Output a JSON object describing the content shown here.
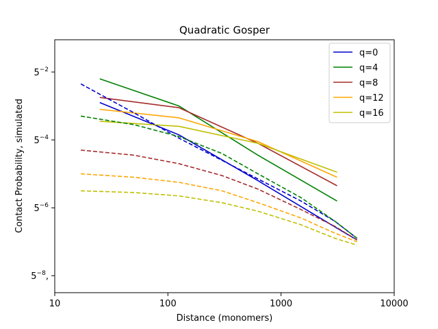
{
  "chart_data": {
    "type": "line",
    "title": "Quadratic Gosper",
    "xlabel": "Distance (monomers)",
    "ylabel": "Contact Probability, simulated",
    "x_scale": "log10",
    "y_scale": "log5",
    "xlim": [
      10,
      10000
    ],
    "ylim_exp": [
      -8.5,
      -1.05
    ],
    "x_ticks": [
      {
        "value": 10,
        "label": "10"
      },
      {
        "value": 100,
        "label": "100"
      },
      {
        "value": 1000,
        "label": "1000"
      },
      {
        "value": 10000,
        "label": "10000"
      }
    ],
    "y_ticks": [
      {
        "exp": -2,
        "base": "5",
        "sup": "−2",
        "suffix": ""
      },
      {
        "exp": -4,
        "base": "5",
        "sup": "−4",
        "suffix": ""
      },
      {
        "exp": -6,
        "base": "5",
        "sup": "−6",
        "suffix": ""
      },
      {
        "exp": -8,
        "base": "5",
        "sup": "−8",
        "suffix": ","
      }
    ],
    "legend_position": "top-right",
    "series": [
      {
        "name": "q=0",
        "color": "#0000cc",
        "style": "solid",
        "points": [
          [
            25,
            -2.9
          ],
          [
            125,
            -3.85
          ],
          [
            625,
            -5.2
          ],
          [
            3125,
            -6.6
          ],
          [
            4700,
            -6.95
          ]
        ]
      },
      {
        "name": "q=4",
        "color": "#008000",
        "style": "solid",
        "points": [
          [
            25,
            -2.2
          ],
          [
            125,
            -3.0
          ],
          [
            625,
            -4.45
          ],
          [
            3125,
            -5.8
          ]
        ]
      },
      {
        "name": "q=8",
        "color": "#a52a2a",
        "style": "solid",
        "points": [
          [
            25,
            -2.75
          ],
          [
            125,
            -3.05
          ],
          [
            625,
            -4.1
          ],
          [
            3125,
            -5.35
          ]
        ]
      },
      {
        "name": "q=12",
        "color": "#ffa500",
        "style": "solid",
        "points": [
          [
            25,
            -3.1
          ],
          [
            125,
            -3.35
          ],
          [
            625,
            -4.05
          ],
          [
            3125,
            -5.1
          ]
        ]
      },
      {
        "name": "q=16",
        "color": "#bfbf00",
        "style": "solid",
        "points": [
          [
            25,
            -3.45
          ],
          [
            125,
            -3.6
          ],
          [
            625,
            -4.1
          ],
          [
            3125,
            -4.95
          ]
        ]
      },
      {
        "name": "",
        "color": "#0000cc",
        "style": "dashed",
        "points": [
          [
            17,
            -2.35
          ],
          [
            50,
            -3.2
          ],
          [
            125,
            -3.95
          ],
          [
            300,
            -4.6
          ],
          [
            625,
            -5.15
          ],
          [
            1500,
            -5.8
          ],
          [
            3000,
            -6.4
          ],
          [
            4700,
            -6.9
          ]
        ]
      },
      {
        "name": "",
        "color": "#008000",
        "style": "dashed",
        "points": [
          [
            17,
            -3.3
          ],
          [
            50,
            -3.55
          ],
          [
            125,
            -3.9
          ],
          [
            300,
            -4.4
          ],
          [
            625,
            -5.0
          ],
          [
            1500,
            -5.7
          ],
          [
            3000,
            -6.4
          ],
          [
            4700,
            -6.9
          ]
        ]
      },
      {
        "name": "",
        "color": "#a52a2a",
        "style": "dashed",
        "points": [
          [
            17,
            -4.3
          ],
          [
            50,
            -4.45
          ],
          [
            125,
            -4.7
          ],
          [
            300,
            -5.05
          ],
          [
            625,
            -5.45
          ],
          [
            1500,
            -6.05
          ],
          [
            3000,
            -6.55
          ],
          [
            4700,
            -6.95
          ]
        ]
      },
      {
        "name": "",
        "color": "#ffa500",
        "style": "dashed",
        "points": [
          [
            17,
            -5.0
          ],
          [
            50,
            -5.1
          ],
          [
            125,
            -5.25
          ],
          [
            300,
            -5.5
          ],
          [
            625,
            -5.85
          ],
          [
            1500,
            -6.3
          ],
          [
            3000,
            -6.75
          ],
          [
            4700,
            -7.0
          ]
        ]
      },
      {
        "name": "",
        "color": "#bfbf00",
        "style": "dashed",
        "points": [
          [
            17,
            -5.5
          ],
          [
            50,
            -5.55
          ],
          [
            125,
            -5.65
          ],
          [
            300,
            -5.85
          ],
          [
            625,
            -6.1
          ],
          [
            1500,
            -6.5
          ],
          [
            3000,
            -6.9
          ],
          [
            4700,
            -7.1
          ]
        ]
      }
    ]
  }
}
